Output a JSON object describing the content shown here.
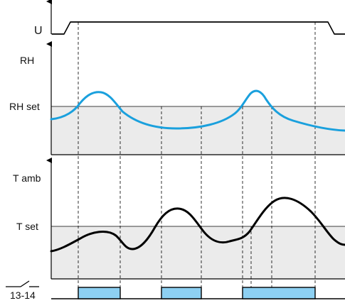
{
  "labels": {
    "supply": "U",
    "humidity": "RH",
    "humidity_setpoint": "RH set",
    "ambient_temp": "T amb",
    "temp_setpoint": "T set",
    "contact": "13-14"
  },
  "colors": {
    "fill_blue": "#8dd0f2",
    "curve_blue": "#1aa0dd",
    "shade_gray": "#ebebeb",
    "line_black": "#000000"
  },
  "icons": {
    "contact": "normally-open-contact-symbol"
  }
}
